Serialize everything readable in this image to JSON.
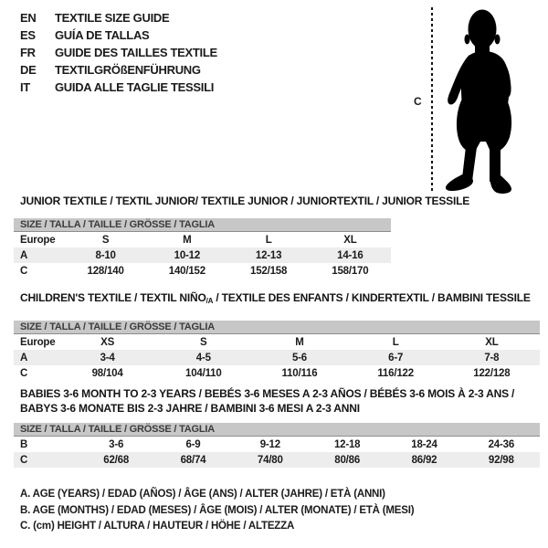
{
  "colors": {
    "header_bar_bg": "#c7c7c7",
    "row_alt_bg": "#ededed",
    "text": "#1b1b1b",
    "bar_text": "#3c3c3c",
    "silhouette": "#000000"
  },
  "language_guide": {
    "items": [
      {
        "code": "EN",
        "label": "TEXTILE SIZE GUIDE"
      },
      {
        "code": "ES",
        "label": "GUÍA DE TALLAS"
      },
      {
        "code": "FR",
        "label": "GUIDE DES TAILLES TEXTILE"
      },
      {
        "code": "DE",
        "label": "TEXTILGRÖßENFÜHRUNG"
      },
      {
        "code": "IT",
        "label": "GUIDA ALLE TAGLIE TESSILI"
      }
    ]
  },
  "figure": {
    "label": "C",
    "depicts": "baby-silhouette"
  },
  "tables": [
    {
      "name": "junior-textile",
      "title_lines": [
        [
          {
            "t": "JUNIOR TEXTILE / TEXTIL JUNIOR/ TEXTILE JUNIOR / JUNIORTEXTIL / JUNIOR TESSILE"
          }
        ]
      ],
      "size_header": "SIZE / TALLA / TAILLE / GRÖSSE / TAGLIA",
      "rows": [
        {
          "label": "Europe",
          "values": [
            "S",
            "M",
            "L",
            "XL"
          ],
          "shaded": false
        },
        {
          "label": "A",
          "values": [
            "8-10",
            "10-12",
            "12-13",
            "14-16"
          ],
          "shaded": true
        },
        {
          "label": "C",
          "values": [
            "128/140",
            "140/152",
            "152/158",
            "158/170"
          ],
          "shaded": false
        }
      ]
    },
    {
      "name": "childrens-textile",
      "title_lines": [
        [
          {
            "t": "CHILDREN'S TEXTILE / TEXTIL NIÑO"
          },
          {
            "t": "/A",
            "sub": true
          },
          {
            "t": " / TEXTILE DES ENFANTS / KINDERTEXTIL / BAMBINI TESSILE"
          }
        ]
      ],
      "size_header": "SIZE / TALLA / TAILLE / GRÖSSE / TAGLIA",
      "rows": [
        {
          "label": "Europe",
          "values": [
            "XS",
            "S",
            "M",
            "L",
            "XL"
          ],
          "shaded": false
        },
        {
          "label": "A",
          "values": [
            "3-4",
            "4-5",
            "5-6",
            "6-7",
            "7-8"
          ],
          "shaded": true
        },
        {
          "label": "C",
          "values": [
            "98/104",
            "104/110",
            "110/116",
            "116/122",
            "122/128"
          ],
          "shaded": false
        }
      ]
    },
    {
      "name": "babies-textile",
      "title_lines": [
        [
          {
            "t": "BABIES 3-6 MONTH TO 2-3 YEARS / BEBÉS 3-6 MESES A 2-3 AÑOS / BÉBÉS 3-6 MOIS À 2-3 ANS /"
          }
        ],
        [
          {
            "t": "BABYS 3-6 MONATE BIS 2-3 JAHRE / BAMBINI 3-6 MESI A 2-3 ANNI"
          }
        ]
      ],
      "size_header": "SIZE / TALLA / TAILLE / GRÖSSE / TAGLIA",
      "rows": [
        {
          "label": "B",
          "values": [
            "3-6",
            "6-9",
            "9-12",
            "12-18",
            "18-24",
            "24-36"
          ],
          "shaded": false
        },
        {
          "label": "C",
          "values": [
            "62/68",
            "68/74",
            "74/80",
            "80/86",
            "86/92",
            "92/98"
          ],
          "shaded": true
        }
      ]
    }
  ],
  "footnotes": [
    "A. AGE (YEARS) / EDAD (AÑOS) / ÂGE (ANS) / ALTER (JAHRE) / ETÀ (ANNI)",
    "B. AGE (MONTHS) / EDAD (MESES) / ÂGE (MOIS) / ALTER (MONATE) / ETÀ (MESI)",
    "C. (cm) HEIGHT / ALTURA / HAUTEUR / HÖHE / ALTEZZA"
  ]
}
